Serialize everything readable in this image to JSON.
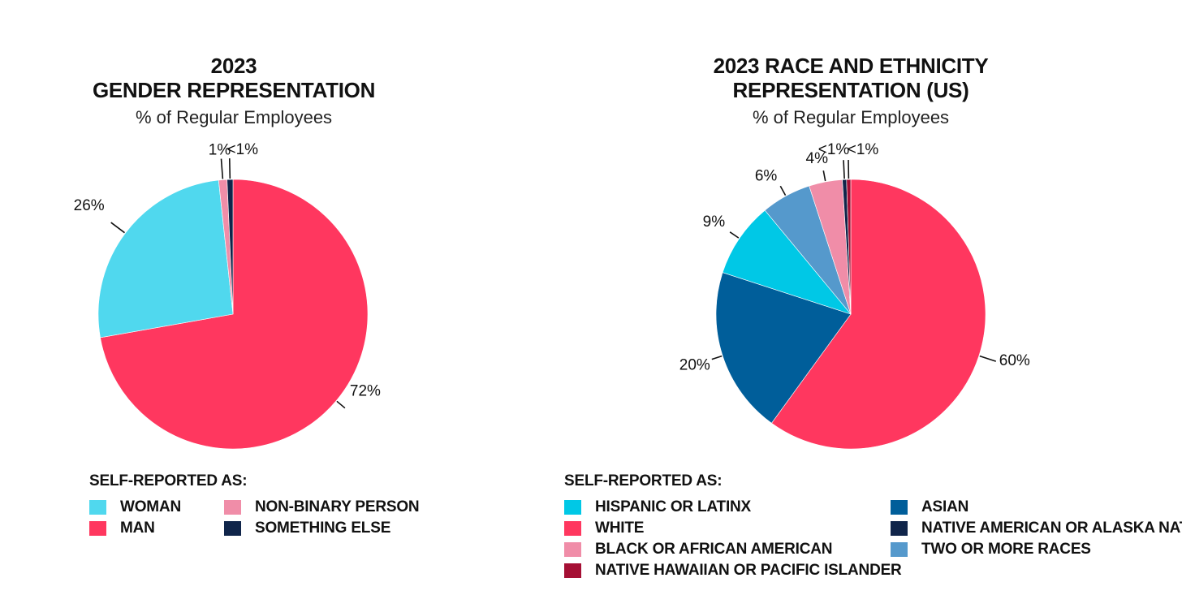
{
  "chart_data": [
    {
      "type": "pie",
      "title_line1": "2023",
      "title_line2": "GENDER REPRESENTATION",
      "subtitle": "% of Regular Employees",
      "legend_title": "SELF-REPORTED AS:",
      "slices": [
        {
          "name": "MAN",
          "value": 72,
          "label": "72%",
          "color": "#FF375F"
        },
        {
          "name": "WOMAN",
          "value": 26,
          "label": "26%",
          "color": "#50D8EE"
        },
        {
          "name": "NON-BINARY PERSON",
          "value": 1,
          "label": "1%",
          "color": "#F08DA8"
        },
        {
          "name": "SOMETHING ELSE",
          "value": 0.7,
          "label": "<1%",
          "color": "#10254A"
        }
      ],
      "legend_order": [
        "WOMAN",
        "NON-BINARY PERSON",
        "MAN",
        "SOMETHING ELSE"
      ]
    },
    {
      "type": "pie",
      "title_line1": "2023 RACE AND ETHNICITY",
      "title_line2": "REPRESENTATION (US)",
      "subtitle": "% of Regular Employees",
      "legend_title": "SELF-REPORTED AS:",
      "slices": [
        {
          "name": "WHITE",
          "value": 60,
          "label": "60%",
          "color": "#FF375F"
        },
        {
          "name": "ASIAN",
          "value": 20,
          "label": "20%",
          "color": "#005E9A"
        },
        {
          "name": "HISPANIC OR LATINX",
          "value": 9,
          "label": "9%",
          "color": "#00C8E6"
        },
        {
          "name": "TWO OR MORE RACES",
          "value": 6,
          "label": "6%",
          "color": "#5599CC"
        },
        {
          "name": "BLACK OR AFRICAN AMERICAN",
          "value": 4,
          "label": "4%",
          "color": "#F08DA8"
        },
        {
          "name": "NATIVE AMERICAN OR ALASKA NATIVE",
          "value": 0.5,
          "label": "<1%",
          "color": "#10254A"
        },
        {
          "name": "NATIVE HAWAIIAN OR PACIFIC ISLANDER",
          "value": 0.5,
          "label": "<1%",
          "color": "#A50F34"
        }
      ],
      "legend_order": [
        "HISPANIC OR LATINX",
        "ASIAN",
        "WHITE",
        "NATIVE AMERICAN OR ALASKA NATIVE",
        "BLACK OR AFRICAN AMERICAN",
        "TWO OR MORE RACES",
        "NATIVE HAWAIIAN OR PACIFIC ISLANDER"
      ]
    }
  ]
}
